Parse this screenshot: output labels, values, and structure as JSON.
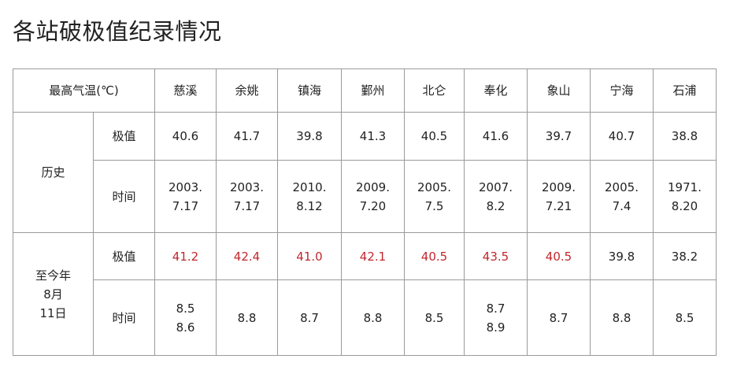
{
  "title": "各站破极值纪录情况",
  "header": {
    "label": "最高气温(℃)",
    "stations": [
      "慈溪",
      "余姚",
      "镇海",
      "鄞州",
      "北仑",
      "奉化",
      "象山",
      "宁海",
      "石浦"
    ]
  },
  "history": {
    "group_label": "历史",
    "value_label": "极值",
    "time_label": "时间",
    "values": [
      "40.6",
      "41.7",
      "39.8",
      "41.3",
      "40.5",
      "41.6",
      "39.7",
      "40.7",
      "38.8"
    ],
    "times": [
      "2003.\n7.17",
      "2003.\n7.17",
      "2010.\n8.12",
      "2009.\n7.20",
      "2005.\n7.5",
      "2007.\n8.2",
      "2009.\n7.21",
      "2005.\n7.4",
      "1971.\n8.20"
    ]
  },
  "current": {
    "group_label": "至今年\n8月\n11日",
    "value_label": "极值",
    "time_label": "时间",
    "values": [
      "41.2",
      "42.4",
      "41.0",
      "42.1",
      "40.5",
      "43.5",
      "40.5",
      "39.8",
      "38.2"
    ],
    "record_broken": [
      true,
      true,
      true,
      true,
      true,
      true,
      true,
      false,
      false
    ],
    "times": [
      "8.5\n8.6",
      "8.8",
      "8.7",
      "8.8",
      "8.5",
      "8.7\n8.9",
      "8.7",
      "8.8",
      "8.5"
    ]
  },
  "colors": {
    "record_red": "#c1272d",
    "border": "#9a9a9a",
    "text": "#222222"
  }
}
